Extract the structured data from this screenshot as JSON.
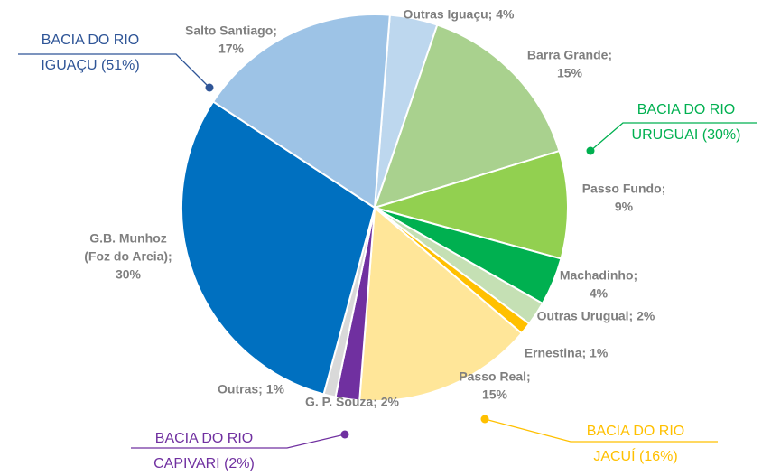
{
  "chart_data": {
    "type": "pie",
    "values": [
      4,
      15,
      9,
      4,
      2,
      1,
      15,
      2,
      1,
      30,
      17
    ],
    "value_labels": [
      [
        "Outras Iguaçu; 4%"
      ],
      [
        "Barra Grande;",
        "15%"
      ],
      [
        "Passo Fundo;",
        "9%"
      ],
      [
        "Machadinho;",
        "4%"
      ],
      [
        "Outras Uruguai; 2%"
      ],
      [
        "Ernestina; 1%"
      ],
      [
        "Passo Real;",
        "15%"
      ],
      [
        "G. P. Souza; 2%"
      ],
      [
        "Outras; 1%"
      ],
      [
        "G.B. Munhoz",
        "(Foz do Areia);",
        "30%"
      ],
      [
        "Salto Santiago;",
        "17%"
      ]
    ],
    "colors": [
      "#bdd7ee",
      "#a9d18e",
      "#92d050",
      "#00b050",
      "#c5e0b4",
      "#ffc000",
      "#ffe699",
      "#7030a0",
      "#d9d9d9",
      "#0070c0",
      "#9dc3e6"
    ],
    "annotations": [
      {
        "lines": [
          "BACIA DO RIO",
          "IGUAÇU (51%)"
        ],
        "color": "#2f5597"
      },
      {
        "lines": [
          "BACIA DO RIO",
          "URUGUAI (30%)"
        ],
        "color": "#00b050"
      },
      {
        "lines": [
          "BACIA DO RIO",
          "CAPIVARI (2%)"
        ],
        "color": "#7030a0"
      },
      {
        "lines": [
          "BACIA DO RIO",
          "JACUÍ (16%)"
        ],
        "color": "#ffc000"
      }
    ]
  }
}
